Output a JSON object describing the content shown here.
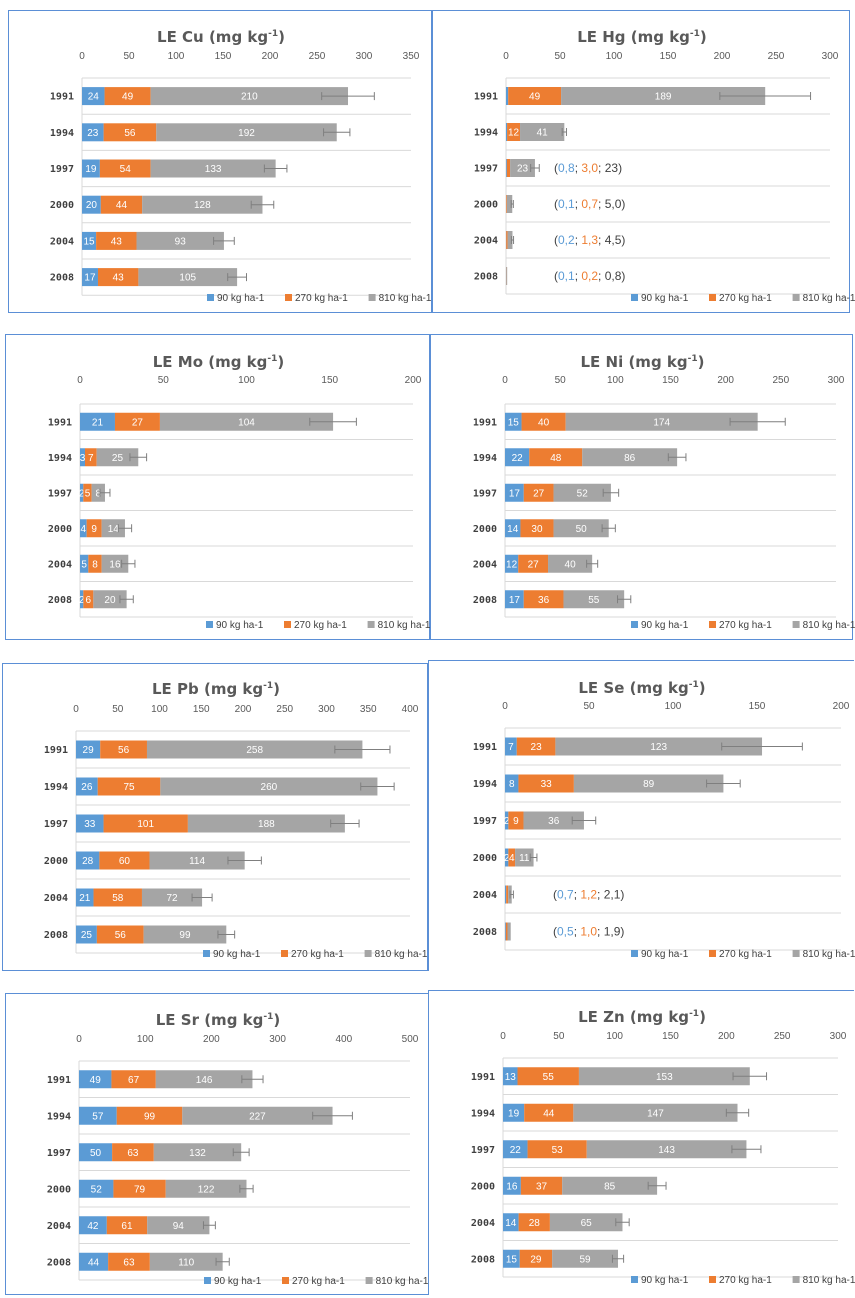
{
  "legend": [
    "90 kg ha-1",
    "270 kg ha-1",
    "810 kg ha-1"
  ],
  "colors": {
    "s90": "#5b9bd5",
    "s270": "#ed7d31",
    "s810": "#a5a5a5",
    "grid": "#d9d9d9",
    "text": "#595959"
  },
  "chart_data": [
    {
      "type": "bar",
      "title": "LE Cu",
      "unit": "(mg kg",
      "unit_exp": "-1",
      "unit_close": ")",
      "categories": [
        "1991",
        "1994",
        "1997",
        "2000",
        "2004",
        "2008"
      ],
      "xlim": [
        0,
        350
      ],
      "xticks": [
        0,
        50,
        100,
        150,
        200,
        250,
        300,
        350
      ],
      "series": [
        {
          "name": "90 kg ha-1",
          "values": [
            24,
            23,
            19,
            20,
            15,
            17
          ]
        },
        {
          "name": "270 kg ha-1",
          "values": [
            49,
            56,
            54,
            44,
            43,
            43
          ]
        },
        {
          "name": "810 kg ha-1",
          "values": [
            210,
            192,
            133,
            128,
            93,
            105
          ]
        }
      ],
      "errors": [
        28,
        14,
        12,
        12,
        11,
        10
      ],
      "notes": []
    },
    {
      "type": "bar",
      "title": "LE Hg",
      "unit": "(mg kg",
      "unit_exp": "-1",
      "unit_close": ")",
      "categories": [
        "1991",
        "1994",
        "1997",
        "2000",
        "2004",
        "2008"
      ],
      "xlim": [
        0,
        300
      ],
      "xticks": [
        0,
        50,
        100,
        150,
        200,
        250,
        300
      ],
      "series": [
        {
          "name": "90 kg ha-1",
          "values": [
            2,
            1,
            0.8,
            0.1,
            0.2,
            0.1
          ]
        },
        {
          "name": "270 kg ha-1",
          "values": [
            49,
            12,
            3.0,
            0.7,
            1.3,
            0.2
          ]
        },
        {
          "name": "810 kg ha-1",
          "values": [
            189,
            41,
            23,
            5.0,
            4.5,
            0.8
          ]
        }
      ],
      "errors": [
        42,
        2,
        4,
        1,
        1,
        0
      ],
      "notes": [
        null,
        null,
        [
          {
            "text": "(",
            "c": "dark"
          },
          {
            "text": "0,8",
            "c": "s90"
          },
          {
            "text": "; ",
            "c": "dark"
          },
          {
            "text": "3,0",
            "c": "s270"
          },
          {
            "text": "; 23)",
            "c": "dark"
          }
        ],
        [
          {
            "text": "(",
            "c": "dark"
          },
          {
            "text": "0,1",
            "c": "s90"
          },
          {
            "text": "; ",
            "c": "dark"
          },
          {
            "text": "0,7",
            "c": "s270"
          },
          {
            "text": "; 5,0)",
            "c": "dark"
          }
        ],
        [
          {
            "text": "(",
            "c": "dark"
          },
          {
            "text": "0,2",
            "c": "s90"
          },
          {
            "text": "; ",
            "c": "dark"
          },
          {
            "text": "1,3",
            "c": "s270"
          },
          {
            "text": "; 4,5)",
            "c": "dark"
          }
        ],
        [
          {
            "text": "(",
            "c": "dark"
          },
          {
            "text": "0,1",
            "c": "s90"
          },
          {
            "text": "; ",
            "c": "dark"
          },
          {
            "text": "0,2",
            "c": "s270"
          },
          {
            "text": "; 0,8)",
            "c": "dark"
          }
        ]
      ],
      "label_mask": [
        [
          0,
          1,
          1
        ],
        [
          0,
          1,
          1
        ],
        [
          0,
          0,
          1
        ],
        [
          0,
          0,
          0
        ],
        [
          0,
          0,
          0
        ],
        [
          0,
          0,
          0
        ]
      ]
    },
    {
      "type": "bar",
      "title": "LE Mo",
      "unit": "(mg kg",
      "unit_exp": "-1",
      "unit_close": ")",
      "categories": [
        "1991",
        "1994",
        "1997",
        "2000",
        "2004",
        "2008"
      ],
      "xlim": [
        0,
        200
      ],
      "xticks": [
        0,
        50,
        100,
        150,
        200
      ],
      "series": [
        {
          "name": "90 kg ha-1",
          "values": [
            21,
            3,
            2,
            4,
            5,
            2
          ]
        },
        {
          "name": "270 kg ha-1",
          "values": [
            27,
            7,
            5,
            9,
            8,
            6
          ]
        },
        {
          "name": "810 kg ha-1",
          "values": [
            104,
            25,
            8,
            14,
            16,
            20
          ]
        }
      ],
      "errors": [
        14,
        5,
        3,
        4,
        4,
        4
      ],
      "notes": [],
      "label_text": [
        [
          "21",
          "27",
          "104"
        ],
        [
          "3",
          "7",
          "25"
        ],
        [
          "2",
          "5",
          "8"
        ],
        [
          "4",
          "9",
          "14"
        ],
        [
          "5",
          "8",
          "16"
        ],
        [
          "2",
          "6",
          "20"
        ]
      ]
    },
    {
      "type": "bar",
      "title": "LE Ni",
      "unit": "(mg kg",
      "unit_exp": "-1",
      "unit_close": ")",
      "categories": [
        "1991",
        "1994",
        "1997",
        "2000",
        "2004",
        "2008"
      ],
      "xlim": [
        0,
        300
      ],
      "xticks": [
        0,
        50,
        100,
        150,
        200,
        250,
        300
      ],
      "series": [
        {
          "name": "90 kg ha-1",
          "values": [
            15,
            22,
            17,
            14,
            12,
            17
          ]
        },
        {
          "name": "270 kg ha-1",
          "values": [
            40,
            48,
            27,
            30,
            27,
            36
          ]
        },
        {
          "name": "810 kg ha-1",
          "values": [
            174,
            86,
            52,
            50,
            40,
            55
          ]
        }
      ],
      "errors": [
        25,
        8,
        7,
        6,
        5,
        6
      ],
      "notes": []
    },
    {
      "type": "bar",
      "title": "LE Pb",
      "unit": "(mg kg",
      "unit_exp": "-1",
      "unit_close": ")",
      "categories": [
        "1991",
        "1994",
        "1997",
        "2000",
        "2004",
        "2008"
      ],
      "xlim": [
        0,
        400
      ],
      "xticks": [
        0,
        50,
        100,
        150,
        200,
        250,
        300,
        350,
        400
      ],
      "series": [
        {
          "name": "90 kg ha-1",
          "values": [
            29,
            26,
            33,
            28,
            21,
            25
          ]
        },
        {
          "name": "270 kg ha-1",
          "values": [
            56,
            75,
            101,
            60,
            58,
            56
          ]
        },
        {
          "name": "810 kg ha-1",
          "values": [
            258,
            260,
            188,
            114,
            72,
            99
          ]
        }
      ],
      "errors": [
        33,
        20,
        17,
        20,
        12,
        10
      ],
      "notes": []
    },
    {
      "type": "bar",
      "title": "LE Se",
      "unit": "(mg kg",
      "unit_exp": "-1",
      "unit_close": ")",
      "categories": [
        "1991",
        "1994",
        "1997",
        "2000",
        "2004",
        "2008"
      ],
      "xlim": [
        0,
        200
      ],
      "xticks": [
        0,
        50,
        100,
        150,
        200
      ],
      "series": [
        {
          "name": "90 kg ha-1",
          "values": [
            7,
            8,
            2,
            2,
            0.7,
            0.5
          ]
        },
        {
          "name": "270 kg ha-1",
          "values": [
            23,
            33,
            9,
            4,
            1.2,
            1.0
          ]
        },
        {
          "name": "810 kg ha-1",
          "values": [
            123,
            89,
            36,
            11,
            2.1,
            1.9
          ]
        }
      ],
      "errors": [
        24,
        10,
        7,
        2,
        1,
        0
      ],
      "notes": [
        null,
        null,
        null,
        null,
        [
          {
            "text": "(",
            "c": "dark"
          },
          {
            "text": "0,7",
            "c": "s90"
          },
          {
            "text": "; ",
            "c": "dark"
          },
          {
            "text": "1,2",
            "c": "s270"
          },
          {
            "text": "; 2,1)",
            "c": "dark"
          }
        ],
        [
          {
            "text": "(",
            "c": "dark"
          },
          {
            "text": "0,5",
            "c": "s90"
          },
          {
            "text": "; ",
            "c": "dark"
          },
          {
            "text": "1,0",
            "c": "s270"
          },
          {
            "text": "; 1,9)",
            "c": "dark"
          }
        ]
      ],
      "label_mask": [
        [
          1,
          1,
          1
        ],
        [
          1,
          1,
          1
        ],
        [
          1,
          1,
          1
        ],
        [
          1,
          1,
          1
        ],
        [
          0,
          0,
          0
        ],
        [
          0,
          0,
          0
        ]
      ]
    },
    {
      "type": "bar",
      "title": "LE Sr",
      "unit": "(mg kg",
      "unit_exp": "-1",
      "unit_close": ")",
      "categories": [
        "1991",
        "1994",
        "1997",
        "2000",
        "2004",
        "2008"
      ],
      "xlim": [
        0,
        500
      ],
      "xticks": [
        0,
        100,
        200,
        300,
        400,
        500
      ],
      "series": [
        {
          "name": "90 kg ha-1",
          "values": [
            49,
            57,
            50,
            52,
            42,
            44
          ]
        },
        {
          "name": "270 kg ha-1",
          "values": [
            67,
            99,
            63,
            79,
            61,
            63
          ]
        },
        {
          "name": "810 kg ha-1",
          "values": [
            146,
            227,
            132,
            122,
            94,
            110
          ]
        }
      ],
      "errors": [
        16,
        30,
        12,
        10,
        9,
        10
      ],
      "notes": []
    },
    {
      "type": "bar",
      "title": "LE Zn",
      "unit": "(mg kg",
      "unit_exp": "-1",
      "unit_close": ")",
      "categories": [
        "1991",
        "1994",
        "1997",
        "2000",
        "2004",
        "2008"
      ],
      "xlim": [
        0,
        300
      ],
      "xticks": [
        0,
        50,
        100,
        150,
        200,
        250,
        300
      ],
      "series": [
        {
          "name": "90 kg ha-1",
          "values": [
            13,
            19,
            22,
            16,
            14,
            15
          ]
        },
        {
          "name": "270 kg ha-1",
          "values": [
            55,
            44,
            53,
            37,
            28,
            29
          ]
        },
        {
          "name": "810 kg ha-1",
          "values": [
            153,
            147,
            143,
            85,
            65,
            59
          ]
        }
      ],
      "errors": [
        15,
        10,
        13,
        8,
        6,
        5
      ],
      "notes": []
    }
  ]
}
